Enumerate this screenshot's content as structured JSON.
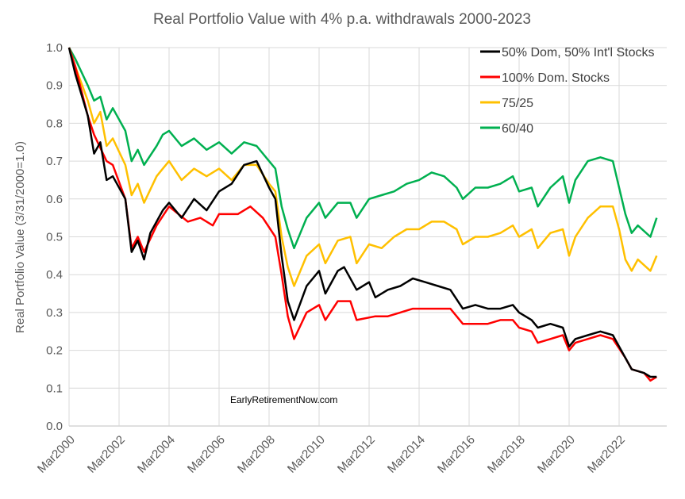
{
  "chart_data": {
    "type": "line",
    "title": "Real Portfolio Value with 4% p.a. withdrawals 2000-2023",
    "xlabel": "",
    "ylabel": "Real Portfolio Value (3/31/2000=1.0)",
    "ylim": [
      0,
      1.0
    ],
    "xlim": [
      2000.25,
      2023.75
    ],
    "yticks": [
      "0.0",
      "0.1",
      "0.2",
      "0.3",
      "0.4",
      "0.5",
      "0.6",
      "0.7",
      "0.8",
      "0.9",
      "1.0"
    ],
    "xticks": [
      "Mar2000",
      "Mar2002",
      "Mar2004",
      "Mar2006",
      "Mar2008",
      "Mar2010",
      "Mar2012",
      "Mar2014",
      "Mar2016",
      "Mar2018",
      "Mar2020",
      "Mar2022"
    ],
    "grid": true,
    "legend_position": "top-right",
    "annotation": "EarlyRetirementNow.com",
    "series": [
      {
        "name": "50% Dom, 50% Int'l Stocks",
        "color": "#000000",
        "x": [
          2000.25,
          2000.5,
          2001.0,
          2001.25,
          2001.5,
          2001.75,
          2002.0,
          2002.5,
          2002.75,
          2003.0,
          2003.25,
          2003.5,
          2004.0,
          2004.25,
          2004.75,
          2005.25,
          2005.75,
          2006.25,
          2006.75,
          2007.25,
          2007.75,
          2008.25,
          2008.5,
          2008.75,
          2009.0,
          2009.25,
          2009.75,
          2010.25,
          2010.5,
          2011.0,
          2011.25,
          2011.75,
          2012.25,
          2012.5,
          2013.0,
          2013.5,
          2014.0,
          2014.5,
          2015.0,
          2015.5,
          2016.0,
          2016.5,
          2017.0,
          2017.5,
          2018.0,
          2018.25,
          2018.75,
          2019.0,
          2019.5,
          2020.0,
          2020.25,
          2020.5,
          2021.0,
          2021.5,
          2022.0,
          2022.5,
          2022.75,
          2023.25,
          2023.5,
          2023.75
        ],
        "y": [
          1.0,
          0.93,
          0.82,
          0.72,
          0.75,
          0.65,
          0.66,
          0.6,
          0.46,
          0.49,
          0.44,
          0.51,
          0.57,
          0.59,
          0.55,
          0.6,
          0.57,
          0.62,
          0.64,
          0.69,
          0.7,
          0.63,
          0.6,
          0.45,
          0.33,
          0.28,
          0.37,
          0.41,
          0.35,
          0.41,
          0.42,
          0.36,
          0.38,
          0.34,
          0.36,
          0.37,
          0.39,
          0.38,
          0.37,
          0.36,
          0.31,
          0.32,
          0.31,
          0.31,
          0.32,
          0.3,
          0.28,
          0.26,
          0.27,
          0.26,
          0.21,
          0.23,
          0.24,
          0.25,
          0.24,
          0.18,
          0.15,
          0.14,
          0.13,
          0.13
        ]
      },
      {
        "name": "100% Dom. Stocks",
        "color": "#ff0000",
        "x": [
          2000.25,
          2000.5,
          2001.0,
          2001.25,
          2001.75,
          2002.0,
          2002.5,
          2002.75,
          2003.0,
          2003.25,
          2003.75,
          2004.25,
          2005.0,
          2005.5,
          2006.0,
          2006.25,
          2007.0,
          2007.5,
          2008.0,
          2008.5,
          2008.75,
          2009.0,
          2009.25,
          2009.75,
          2010.25,
          2010.5,
          2011.0,
          2011.5,
          2011.75,
          2012.5,
          2013.0,
          2013.5,
          2014.0,
          2014.5,
          2015.0,
          2015.5,
          2016.0,
          2016.5,
          2017.0,
          2017.5,
          2018.0,
          2018.25,
          2018.75,
          2019.0,
          2019.5,
          2020.0,
          2020.25,
          2020.5,
          2021.0,
          2021.5,
          2022.0,
          2022.5,
          2022.75,
          2023.25,
          2023.5,
          2023.75
        ],
        "y": [
          1.0,
          0.95,
          0.82,
          0.77,
          0.7,
          0.69,
          0.6,
          0.47,
          0.5,
          0.46,
          0.53,
          0.58,
          0.54,
          0.55,
          0.53,
          0.56,
          0.56,
          0.58,
          0.55,
          0.5,
          0.4,
          0.29,
          0.23,
          0.3,
          0.32,
          0.28,
          0.33,
          0.33,
          0.28,
          0.29,
          0.29,
          0.3,
          0.31,
          0.31,
          0.31,
          0.31,
          0.27,
          0.27,
          0.27,
          0.28,
          0.28,
          0.26,
          0.25,
          0.22,
          0.23,
          0.24,
          0.2,
          0.22,
          0.23,
          0.24,
          0.23,
          0.18,
          0.15,
          0.14,
          0.12,
          0.13
        ]
      },
      {
        "name": "75/25",
        "color": "#ffc000",
        "x": [
          2000.25,
          2000.5,
          2001.0,
          2001.25,
          2001.5,
          2001.75,
          2002.0,
          2002.5,
          2002.75,
          2003.0,
          2003.25,
          2003.75,
          2004.0,
          2004.25,
          2004.75,
          2005.25,
          2005.75,
          2006.25,
          2006.75,
          2007.25,
          2007.75,
          2008.25,
          2008.5,
          2008.75,
          2009.0,
          2009.25,
          2009.75,
          2010.25,
          2010.5,
          2011.0,
          2011.5,
          2011.75,
          2012.25,
          2012.75,
          2013.25,
          2013.75,
          2014.25,
          2014.75,
          2015.25,
          2015.75,
          2016.0,
          2016.5,
          2017.0,
          2017.5,
          2018.0,
          2018.25,
          2018.75,
          2019.0,
          2019.5,
          2020.0,
          2020.25,
          2020.5,
          2021.0,
          2021.5,
          2022.0,
          2022.25,
          2022.5,
          2022.75,
          2023.0,
          2023.5,
          2023.75
        ],
        "y": [
          1.0,
          0.95,
          0.86,
          0.8,
          0.83,
          0.74,
          0.76,
          0.69,
          0.61,
          0.64,
          0.59,
          0.66,
          0.68,
          0.7,
          0.65,
          0.68,
          0.66,
          0.68,
          0.65,
          0.69,
          0.69,
          0.64,
          0.62,
          0.5,
          0.42,
          0.37,
          0.45,
          0.48,
          0.43,
          0.49,
          0.5,
          0.43,
          0.48,
          0.47,
          0.5,
          0.52,
          0.52,
          0.54,
          0.54,
          0.52,
          0.48,
          0.5,
          0.5,
          0.51,
          0.53,
          0.5,
          0.52,
          0.47,
          0.51,
          0.52,
          0.45,
          0.5,
          0.55,
          0.58,
          0.58,
          0.52,
          0.44,
          0.41,
          0.44,
          0.41,
          0.45
        ]
      },
      {
        "name": "60/40",
        "color": "#00b050",
        "x": [
          2000.25,
          2000.5,
          2001.0,
          2001.25,
          2001.5,
          2001.75,
          2002.0,
          2002.5,
          2002.75,
          2003.0,
          2003.25,
          2003.75,
          2004.0,
          2004.25,
          2004.75,
          2005.25,
          2005.75,
          2006.25,
          2006.75,
          2007.25,
          2007.75,
          2008.25,
          2008.5,
          2008.75,
          2009.0,
          2009.25,
          2009.75,
          2010.25,
          2010.5,
          2011.0,
          2011.5,
          2011.75,
          2012.25,
          2012.75,
          2013.25,
          2013.75,
          2014.25,
          2014.75,
          2015.25,
          2015.75,
          2016.0,
          2016.5,
          2017.0,
          2017.5,
          2018.0,
          2018.25,
          2018.75,
          2019.0,
          2019.5,
          2020.0,
          2020.25,
          2020.5,
          2021.0,
          2021.5,
          2022.0,
          2022.25,
          2022.5,
          2022.75,
          2023.0,
          2023.5,
          2023.75
        ],
        "y": [
          1.0,
          0.97,
          0.9,
          0.86,
          0.87,
          0.81,
          0.84,
          0.78,
          0.7,
          0.73,
          0.69,
          0.74,
          0.77,
          0.78,
          0.74,
          0.76,
          0.73,
          0.75,
          0.72,
          0.75,
          0.74,
          0.7,
          0.68,
          0.58,
          0.52,
          0.47,
          0.55,
          0.59,
          0.55,
          0.59,
          0.59,
          0.55,
          0.6,
          0.61,
          0.62,
          0.64,
          0.65,
          0.67,
          0.66,
          0.63,
          0.6,
          0.63,
          0.63,
          0.64,
          0.66,
          0.62,
          0.63,
          0.58,
          0.63,
          0.66,
          0.59,
          0.65,
          0.7,
          0.71,
          0.7,
          0.63,
          0.56,
          0.51,
          0.53,
          0.5,
          0.55
        ]
      }
    ]
  }
}
